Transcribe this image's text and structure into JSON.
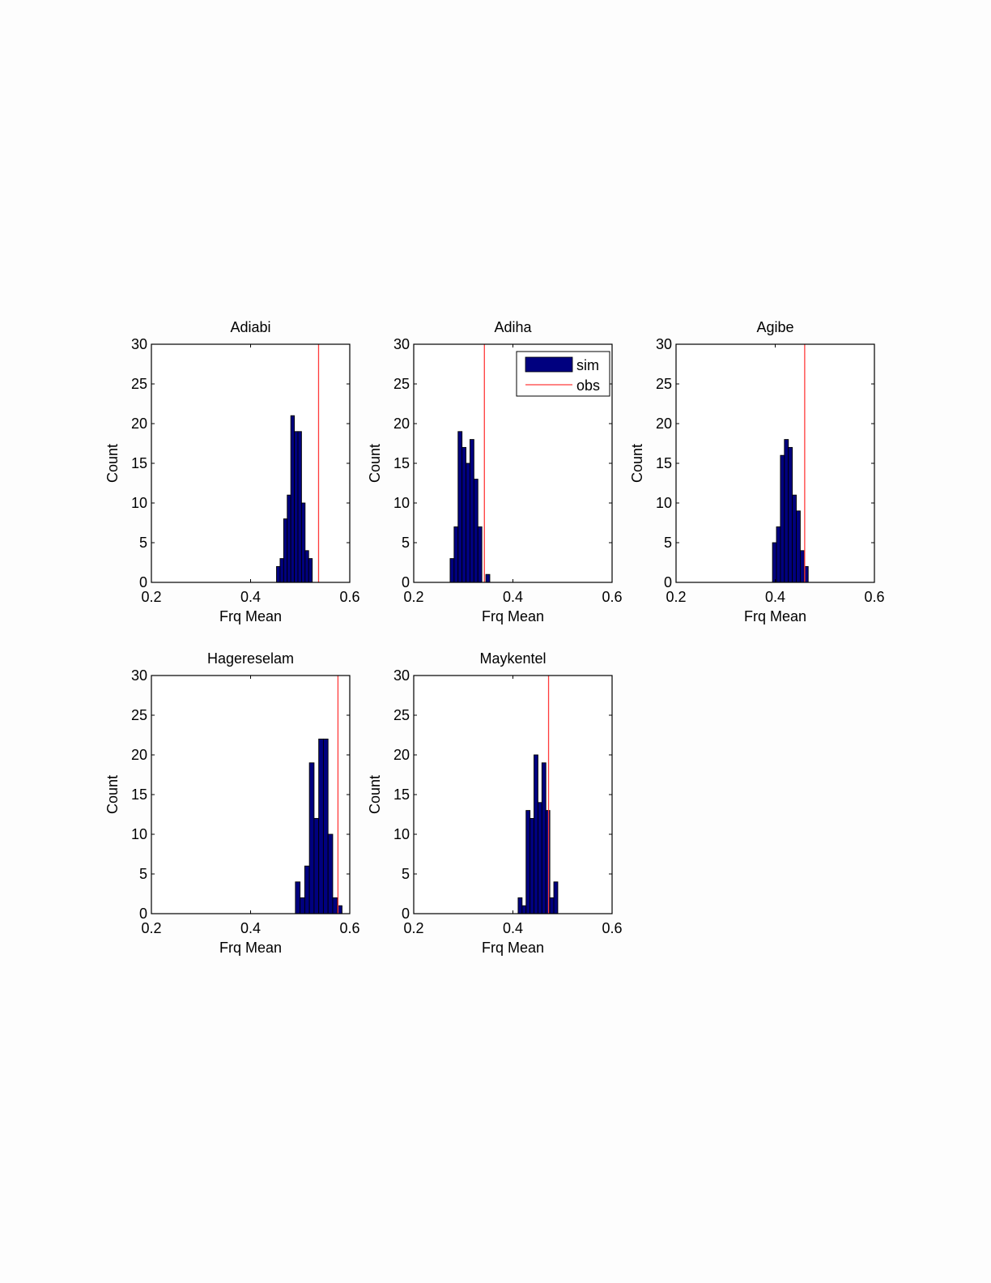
{
  "colors": {
    "sim_bar": "#00007f",
    "obs_line": "#ff3b3b",
    "axes": "#000000",
    "background": "#fdfdfd"
  },
  "legend": {
    "sim_label": "sim",
    "obs_label": "obs",
    "shown_in_panel": "Adiha",
    "placement": "top-right"
  },
  "chart_data": [
    {
      "type": "bar",
      "title": "Adiabi",
      "xlabel": "Frq Mean",
      "ylabel": "Count",
      "xlim": [
        0.2,
        0.6
      ],
      "ylim": [
        0,
        30
      ],
      "xticks": [
        "0.2",
        "0.4",
        "0.6"
      ],
      "yticks": [
        "0",
        "5",
        "10",
        "15",
        "20",
        "25",
        "30"
      ],
      "bin_width": 0.0072,
      "bins": [
        {
          "x": 0.4523,
          "count": 2
        },
        {
          "x": 0.4595,
          "count": 3
        },
        {
          "x": 0.4667,
          "count": 8
        },
        {
          "x": 0.4739,
          "count": 11
        },
        {
          "x": 0.4811,
          "count": 21
        },
        {
          "x": 0.4883,
          "count": 19
        },
        {
          "x": 0.4955,
          "count": 19
        },
        {
          "x": 0.5027,
          "count": 10
        },
        {
          "x": 0.5099,
          "count": 4
        },
        {
          "x": 0.5171,
          "count": 3
        }
      ],
      "obs": 0.5371
    },
    {
      "type": "bar",
      "title": "Adiha",
      "xlabel": "Frq Mean",
      "ylabel": "Count",
      "xlim": [
        0.2,
        0.6
      ],
      "ylim": [
        0,
        30
      ],
      "xticks": [
        "0.2",
        "0.4",
        "0.6"
      ],
      "yticks": [
        "0",
        "5",
        "10",
        "15",
        "20",
        "25",
        "30"
      ],
      "bin_width": 0.008,
      "bins": [
        {
          "x": 0.2734,
          "count": 3
        },
        {
          "x": 0.2814,
          "count": 7
        },
        {
          "x": 0.2894,
          "count": 19
        },
        {
          "x": 0.2974,
          "count": 17
        },
        {
          "x": 0.3054,
          "count": 15
        },
        {
          "x": 0.3134,
          "count": 18
        },
        {
          "x": 0.3214,
          "count": 13
        },
        {
          "x": 0.3294,
          "count": 7
        },
        {
          "x": 0.3374,
          "count": 0
        },
        {
          "x": 0.3454,
          "count": 1
        }
      ],
      "obs": 0.3425
    },
    {
      "type": "bar",
      "title": "Agibe",
      "xlabel": "Frq Mean",
      "ylabel": "Count",
      "xlim": [
        0.2,
        0.6
      ],
      "ylim": [
        0,
        30
      ],
      "xticks": [
        "0.2",
        "0.4",
        "0.6"
      ],
      "yticks": [
        "0",
        "5",
        "10",
        "15",
        "20",
        "25",
        "30"
      ],
      "bin_width": 0.008,
      "bins": [
        {
          "x": 0.3945,
          "count": 5
        },
        {
          "x": 0.4025,
          "count": 7
        },
        {
          "x": 0.4105,
          "count": 16
        },
        {
          "x": 0.4185,
          "count": 18
        },
        {
          "x": 0.4265,
          "count": 17
        },
        {
          "x": 0.4345,
          "count": 11
        },
        {
          "x": 0.4425,
          "count": 9
        },
        {
          "x": 0.4505,
          "count": 4
        },
        {
          "x": 0.4585,
          "count": 2
        }
      ],
      "obs": 0.4594
    },
    {
      "type": "bar",
      "title": "Hagereselam",
      "xlabel": "Frq Mean",
      "ylabel": "Count",
      "xlim": [
        0.2,
        0.6
      ],
      "ylim": [
        0,
        30
      ],
      "xticks": [
        "0.2",
        "0.4",
        "0.6"
      ],
      "yticks": [
        "0",
        "5",
        "10",
        "15",
        "20",
        "25",
        "30"
      ],
      "bin_width": 0.0094,
      "bins": [
        {
          "x": 0.4904,
          "count": 4
        },
        {
          "x": 0.4998,
          "count": 2
        },
        {
          "x": 0.5092,
          "count": 6
        },
        {
          "x": 0.5186,
          "count": 19
        },
        {
          "x": 0.528,
          "count": 12
        },
        {
          "x": 0.5374,
          "count": 22
        },
        {
          "x": 0.5468,
          "count": 22
        },
        {
          "x": 0.5562,
          "count": 10
        },
        {
          "x": 0.5656,
          "count": 2
        },
        {
          "x": 0.575,
          "count": 1
        }
      ],
      "obs": 0.5762
    },
    {
      "type": "bar",
      "title": "Maykentel",
      "xlabel": "Frq Mean",
      "ylabel": "Count",
      "xlim": [
        0.2,
        0.6
      ],
      "ylim": [
        0,
        30
      ],
      "xticks": [
        "0.2",
        "0.4",
        "0.6"
      ],
      "yticks": [
        "0",
        "5",
        "10",
        "15",
        "20",
        "25",
        "30"
      ],
      "bin_width": 0.008,
      "bins": [
        {
          "x": 0.4105,
          "count": 2
        },
        {
          "x": 0.4185,
          "count": 1
        },
        {
          "x": 0.4265,
          "count": 13
        },
        {
          "x": 0.4345,
          "count": 12
        },
        {
          "x": 0.4425,
          "count": 20
        },
        {
          "x": 0.4505,
          "count": 14
        },
        {
          "x": 0.4585,
          "count": 19
        },
        {
          "x": 0.4665,
          "count": 13
        },
        {
          "x": 0.4745,
          "count": 2
        },
        {
          "x": 0.4825,
          "count": 4
        }
      ],
      "obs": 0.4719
    }
  ]
}
